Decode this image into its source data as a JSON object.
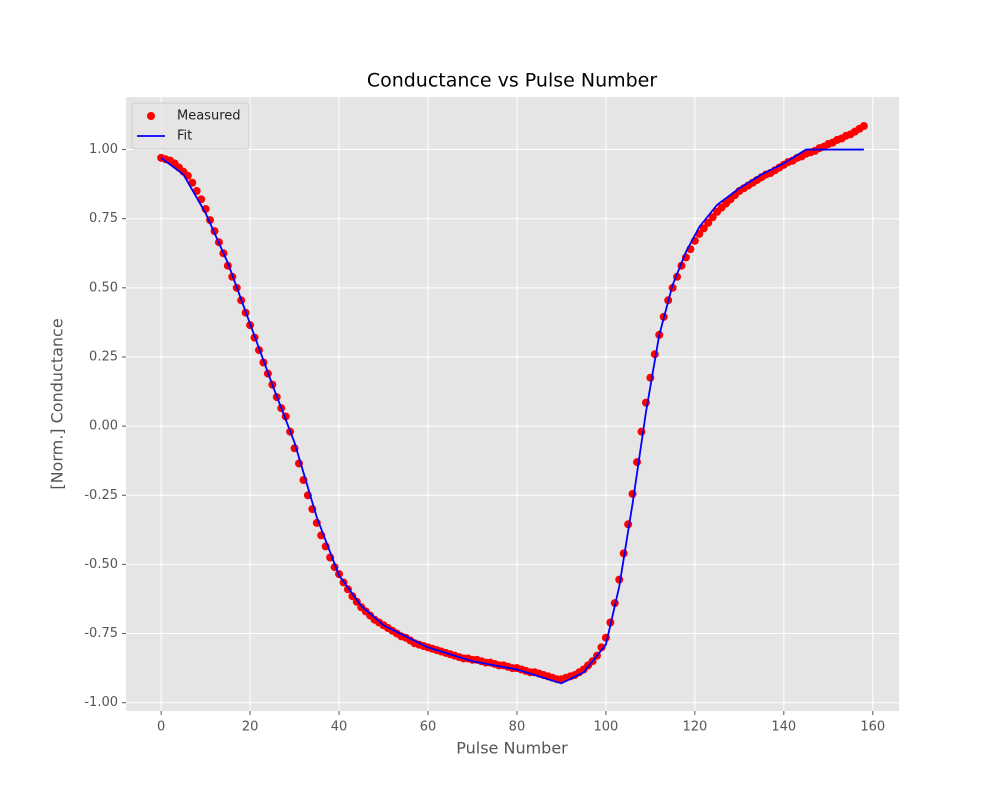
{
  "chart_data": {
    "type": "scatter",
    "title": "Conductance vs Pulse Number",
    "x_label": "Pulse Number",
    "y_label": "[Norm.] Conductance",
    "xlim": [
      -7.9,
      165.9
    ],
    "xticks": [
      0,
      20,
      40,
      60,
      80,
      100,
      120,
      140,
      160
    ],
    "ylim": [
      -1.03,
      1.19
    ],
    "yticks": [
      {
        "value": -1,
        "label": "-1.00"
      },
      {
        "value": -0.75,
        "label": "-0.75"
      },
      {
        "value": -0.5,
        "label": "-0.50"
      },
      {
        "value": -0.25,
        "label": "-0.25"
      },
      {
        "value": 0,
        "label": "0.00"
      },
      {
        "value": 0.25,
        "label": "0.25"
      },
      {
        "value": 0.5,
        "label": "0.50"
      },
      {
        "value": 0.75,
        "label": "0.75"
      },
      {
        "value": 1,
        "label": "1.00"
      }
    ],
    "grid": true,
    "legend": "upper-left",
    "series": [
      {
        "name": "Measured",
        "type": "scatter",
        "color": "#ff0000",
        "x": [
          0,
          1,
          2,
          3,
          4,
          5,
          6,
          7,
          8,
          9,
          10,
          11,
          12,
          13,
          14,
          15,
          16,
          17,
          18,
          19,
          20,
          21,
          22,
          23,
          24,
          25,
          26,
          27,
          28,
          29,
          30,
          31,
          32,
          33,
          34,
          35,
          36,
          37,
          38,
          39,
          40,
          41,
          42,
          43,
          44,
          45,
          46,
          47,
          48,
          49,
          50,
          51,
          52,
          53,
          54,
          55,
          56,
          57,
          58,
          59,
          60,
          61,
          62,
          63,
          64,
          65,
          66,
          67,
          68,
          69,
          70,
          71,
          72,
          73,
          74,
          75,
          76,
          77,
          78,
          79,
          80,
          81,
          82,
          83,
          84,
          85,
          86,
          87,
          88,
          89,
          90,
          91,
          92,
          93,
          94,
          95,
          96,
          97,
          98,
          99,
          100,
          101,
          102,
          103,
          104,
          105,
          106,
          107,
          108,
          109,
          110,
          111,
          112,
          113,
          114,
          115,
          116,
          117,
          118,
          119,
          120,
          121,
          122,
          123,
          124,
          125,
          126,
          127,
          128,
          129,
          130,
          131,
          132,
          133,
          134,
          135,
          136,
          137,
          138,
          139,
          140,
          141,
          142,
          143,
          144,
          145,
          146,
          147,
          148,
          149,
          150,
          151,
          152,
          153,
          154,
          155,
          156,
          157,
          158
        ],
        "values": [
          0.97,
          0.965,
          0.96,
          0.95,
          0.935,
          0.92,
          0.905,
          0.88,
          0.85,
          0.82,
          0.785,
          0.745,
          0.705,
          0.665,
          0.625,
          0.58,
          0.54,
          0.5,
          0.455,
          0.41,
          0.365,
          0.32,
          0.275,
          0.23,
          0.19,
          0.15,
          0.105,
          0.065,
          0.035,
          -0.02,
          -0.08,
          -0.135,
          -0.195,
          -0.25,
          -0.3,
          -0.35,
          -0.395,
          -0.435,
          -0.475,
          -0.51,
          -0.535,
          -0.565,
          -0.59,
          -0.615,
          -0.635,
          -0.655,
          -0.67,
          -0.685,
          -0.7,
          -0.71,
          -0.72,
          -0.73,
          -0.74,
          -0.75,
          -0.76,
          -0.765,
          -0.775,
          -0.785,
          -0.79,
          -0.795,
          -0.8,
          -0.805,
          -0.81,
          -0.815,
          -0.82,
          -0.825,
          -0.83,
          -0.835,
          -0.84,
          -0.84,
          -0.845,
          -0.845,
          -0.85,
          -0.855,
          -0.855,
          -0.86,
          -0.865,
          -0.865,
          -0.87,
          -0.875,
          -0.875,
          -0.88,
          -0.885,
          -0.89,
          -0.89,
          -0.895,
          -0.9,
          -0.905,
          -0.91,
          -0.915,
          -0.915,
          -0.91,
          -0.905,
          -0.9,
          -0.89,
          -0.88,
          -0.865,
          -0.85,
          -0.83,
          -0.8,
          -0.765,
          -0.71,
          -0.64,
          -0.555,
          -0.46,
          -0.355,
          -0.245,
          -0.13,
          -0.02,
          0.085,
          0.175,
          0.26,
          0.33,
          0.395,
          0.455,
          0.5,
          0.54,
          0.58,
          0.61,
          0.64,
          0.67,
          0.695,
          0.715,
          0.735,
          0.755,
          0.775,
          0.79,
          0.805,
          0.82,
          0.835,
          0.85,
          0.86,
          0.87,
          0.88,
          0.89,
          0.9,
          0.91,
          0.915,
          0.925,
          0.935,
          0.945,
          0.955,
          0.96,
          0.97,
          0.975,
          0.985,
          0.99,
          0.995,
          1.005,
          1.01,
          1.02,
          1.025,
          1.035,
          1.04,
          1.05,
          1.055,
          1.065,
          1.075,
          1.085
        ]
      },
      {
        "name": "Fit",
        "type": "line",
        "color": "#0000ff",
        "x": [
          0,
          5,
          10,
          15,
          20,
          25,
          30,
          35,
          40,
          45,
          50,
          60,
          70,
          80,
          90,
          95,
          100,
          103,
          106,
          109,
          112,
          115,
          118,
          121,
          125,
          130,
          135,
          140,
          145,
          150,
          158
        ],
        "values": [
          0.97,
          0.91,
          0.77,
          0.59,
          0.37,
          0.15,
          -0.06,
          -0.33,
          -0.54,
          -0.65,
          -0.72,
          -0.8,
          -0.85,
          -0.88,
          -0.93,
          -0.89,
          -0.79,
          -0.58,
          -0.28,
          0.05,
          0.33,
          0.51,
          0.63,
          0.72,
          0.8,
          0.86,
          0.91,
          0.95,
          1.0,
          1.0,
          1.0
        ]
      }
    ]
  }
}
